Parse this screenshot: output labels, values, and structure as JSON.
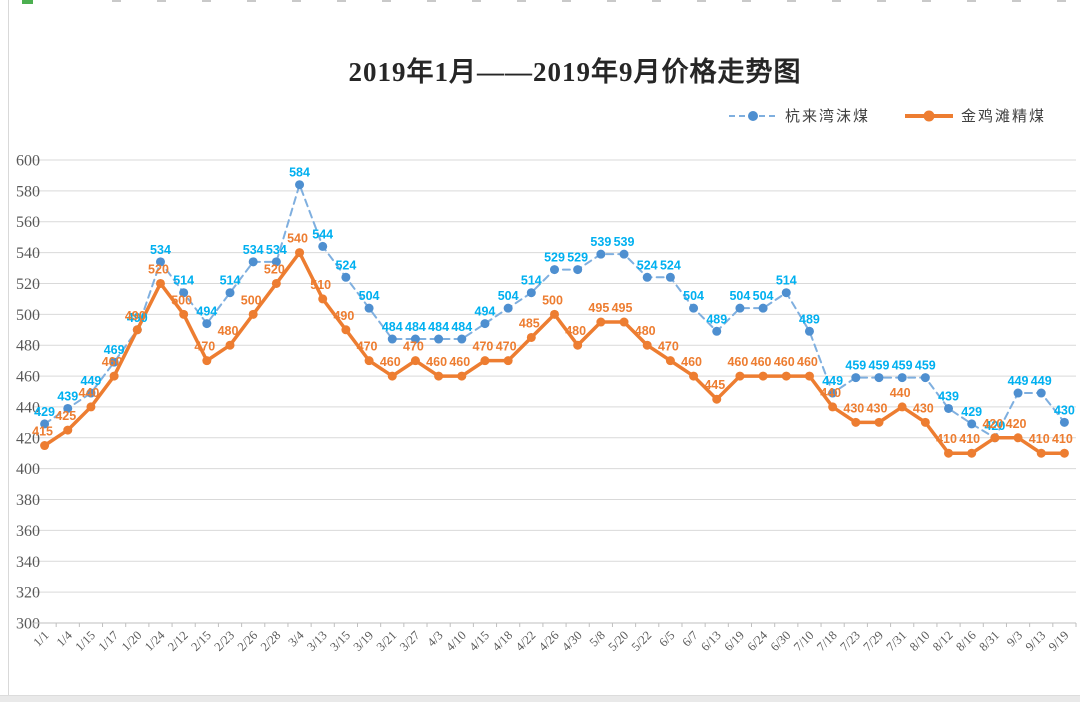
{
  "chart_data": {
    "type": "line",
    "title": "2019年1月——2019年9月价格走势图",
    "categories": [
      "1/1",
      "1/4",
      "1/15",
      "1/17",
      "1/20",
      "1/24",
      "2/12",
      "2/15",
      "2/23",
      "2/26",
      "2/28",
      "3/4",
      "3/13",
      "3/15",
      "3/19",
      "3/21",
      "3/27",
      "4/3",
      "4/10",
      "4/15",
      "4/18",
      "4/22",
      "4/26",
      "4/30",
      "5/8",
      "5/20",
      "5/22",
      "6/5",
      "6/7",
      "6/13",
      "6/19",
      "6/24",
      "6/30",
      "7/10",
      "7/18",
      "7/23",
      "7/29",
      "7/31",
      "8/10",
      "8/12",
      "8/16",
      "8/31",
      "9/3",
      "9/13",
      "9/19"
    ],
    "series": [
      {
        "name": "杭来湾沫煤",
        "style": "dashed",
        "line_color": "#7fafdf",
        "marker_color": "#4e8fd0",
        "label_color": "#00b0f0",
        "values": [
          429,
          439,
          449,
          469,
          490,
          534,
          514,
          494,
          514,
          534,
          534,
          584,
          544,
          524,
          504,
          484,
          484,
          484,
          484,
          494,
          504,
          514,
          529,
          529,
          539,
          539,
          524,
          524,
          504,
          489,
          504,
          504,
          514,
          489,
          449,
          459,
          459,
          459,
          459,
          439,
          429,
          420,
          449,
          449,
          430
        ]
      },
      {
        "name": "金鸡滩精煤",
        "style": "solid",
        "line_color": "#ed7d31",
        "marker_color": "#ed7d31",
        "label_color": "#ed7d31",
        "values": [
          415,
          425,
          440,
          460,
          490,
          520,
          500,
          470,
          480,
          500,
          520,
          540,
          510,
          490,
          470,
          460,
          470,
          460,
          460,
          470,
          470,
          485,
          500,
          480,
          495,
          495,
          480,
          470,
          460,
          445,
          460,
          460,
          460,
          460,
          440,
          430,
          430,
          440,
          430,
          410,
          410,
          420,
          420,
          410,
          410
        ]
      }
    ],
    "ylim": [
      300,
      600
    ],
    "ytick_step": 20,
    "ytick_labels": [
      "300",
      "320",
      "340",
      "360",
      "380",
      "400",
      "420",
      "440",
      "460",
      "480",
      "500",
      "520",
      "540",
      "560",
      "580",
      "600"
    ],
    "grid": true,
    "gridline_color": "#d9d9d9",
    "axis_color": "#bfbfbf",
    "axis_text_color": "#595959",
    "legend_position": "top-right",
    "data_labels": true
  }
}
